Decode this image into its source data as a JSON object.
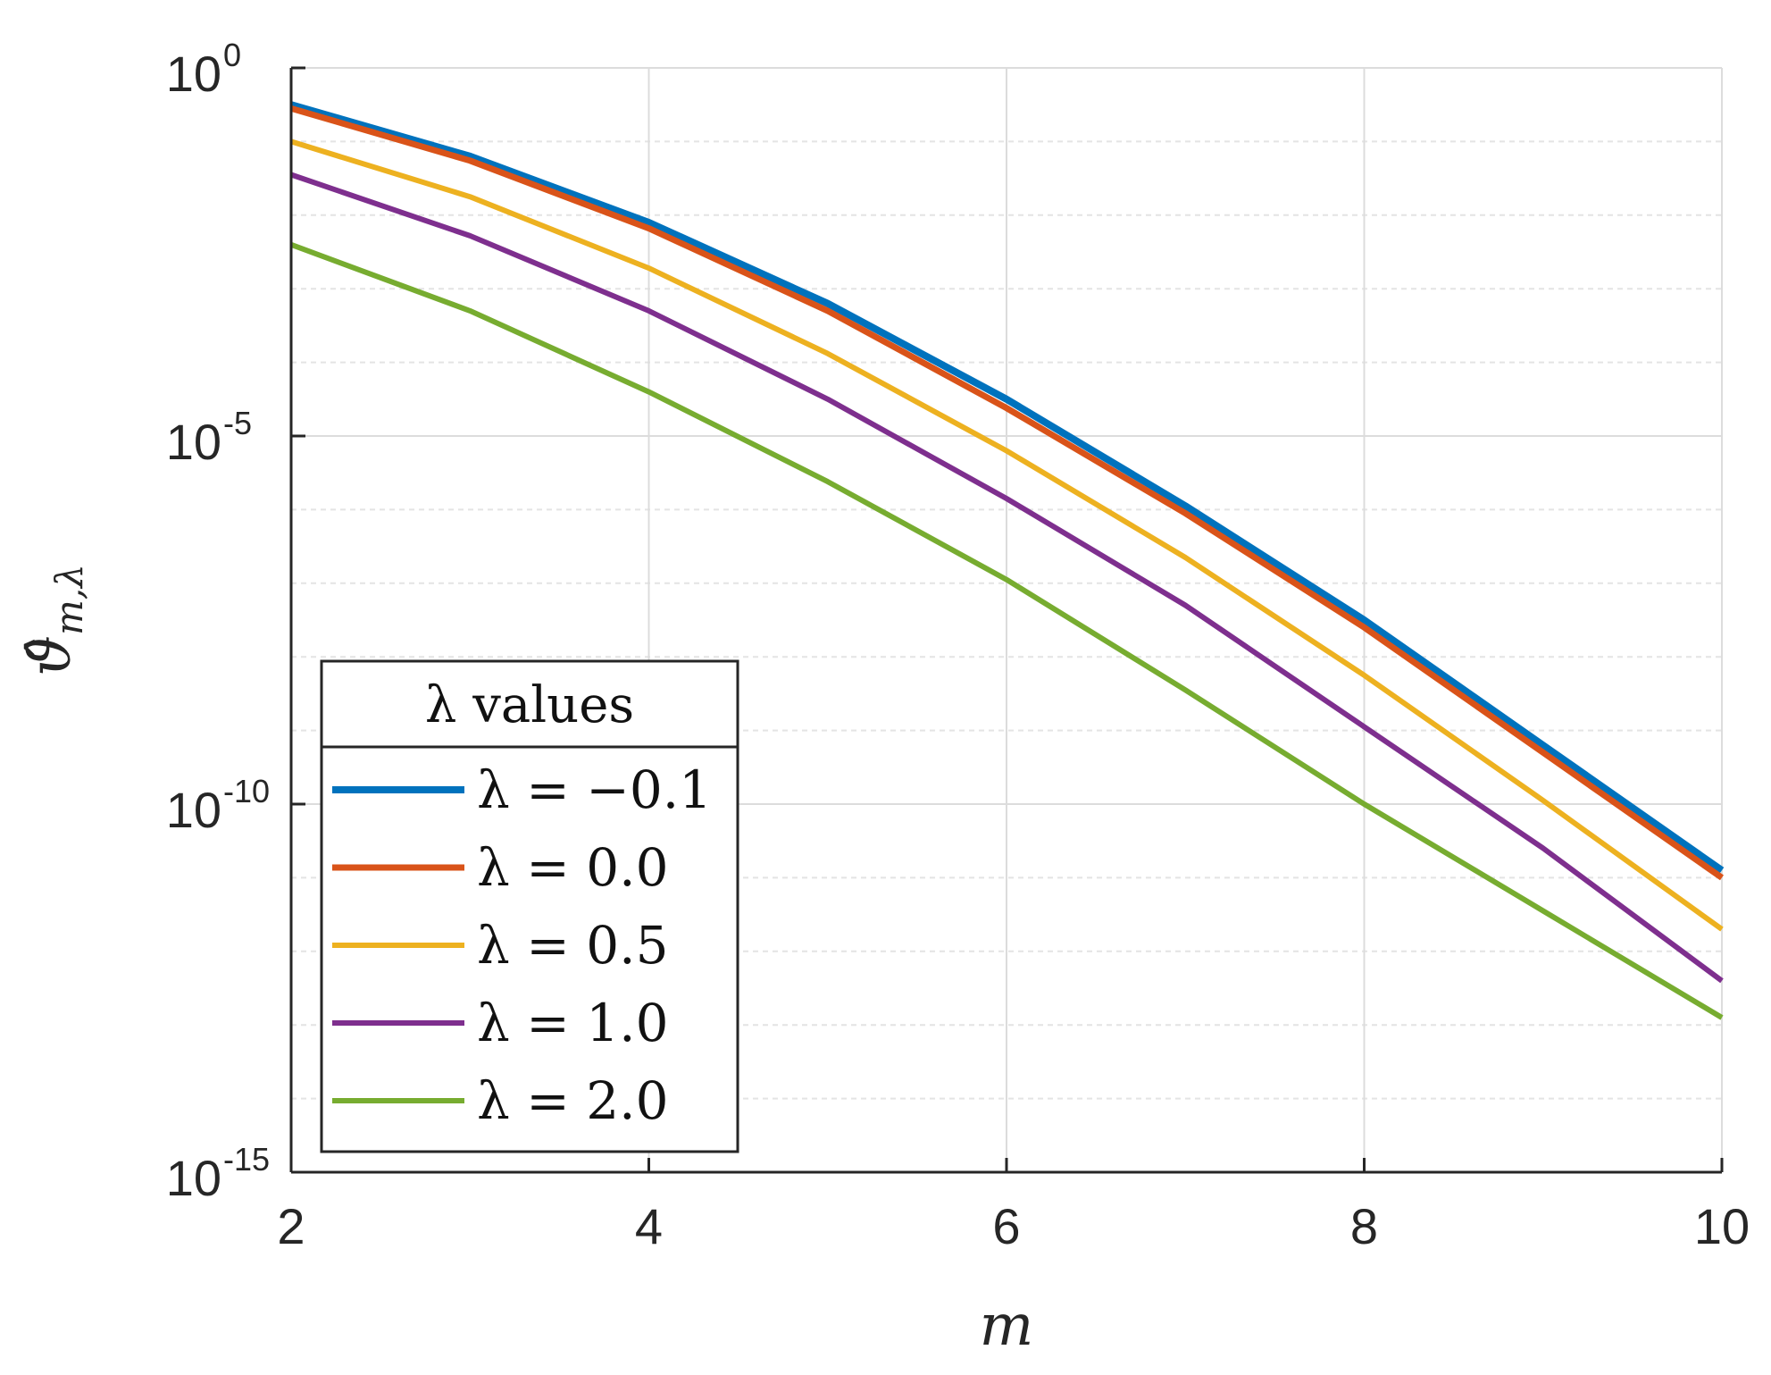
{
  "chart_data": {
    "type": "line",
    "yscale": "log",
    "xlabel": "m",
    "ylabel": "ϑ̂",
    "ylabel_subscript": "m,λ",
    "xlim": [
      2,
      10
    ],
    "ylim_exp": [
      -15,
      0
    ],
    "xticks": [
      2,
      4,
      6,
      8,
      10
    ],
    "xtick_labels": [
      "2",
      "4",
      "6",
      "8",
      "10"
    ],
    "yticks_exp": [
      0,
      -5,
      -10,
      -15
    ],
    "ytick_labels": [
      {
        "base": "10",
        "exp": "0"
      },
      {
        "base": "10",
        "exp": "-5"
      },
      {
        "base": "10",
        "exp": "-10"
      },
      {
        "base": "10",
        "exp": "-15"
      }
    ],
    "grid": true,
    "legend": {
      "title": "λ values",
      "placement": "lower-left"
    },
    "x": [
      2,
      3,
      4,
      5,
      6,
      7,
      8,
      9,
      10
    ],
    "series": [
      {
        "name": "λ = −0.1",
        "color": "#0072BD",
        "log10_values": [
          -0.5,
          -1.2,
          -2.1,
          -3.2,
          -4.5,
          -5.95,
          -7.5,
          -9.2,
          -10.9
        ]
      },
      {
        "name": "λ = 0.0",
        "color": "#D95319",
        "log10_values": [
          -0.55,
          -1.26,
          -2.18,
          -3.3,
          -4.62,
          -6.05,
          -7.6,
          -9.3,
          -11.0
        ]
      },
      {
        "name": "λ = 0.5",
        "color": "#EDB120",
        "log10_values": [
          -1.0,
          -1.75,
          -2.72,
          -3.88,
          -5.2,
          -6.65,
          -8.25,
          -9.95,
          -11.7
        ]
      },
      {
        "name": "λ = 1.0",
        "color": "#7E2F8E",
        "log10_values": [
          -1.45,
          -2.28,
          -3.3,
          -4.5,
          -5.85,
          -7.3,
          -8.95,
          -10.6,
          -12.4
        ]
      },
      {
        "name": "λ = 2.0",
        "color": "#77AC30",
        "log10_values": [
          -2.4,
          -3.3,
          -4.4,
          -5.62,
          -6.95,
          -8.45,
          -10.0,
          -11.45,
          -12.9
        ]
      }
    ]
  }
}
